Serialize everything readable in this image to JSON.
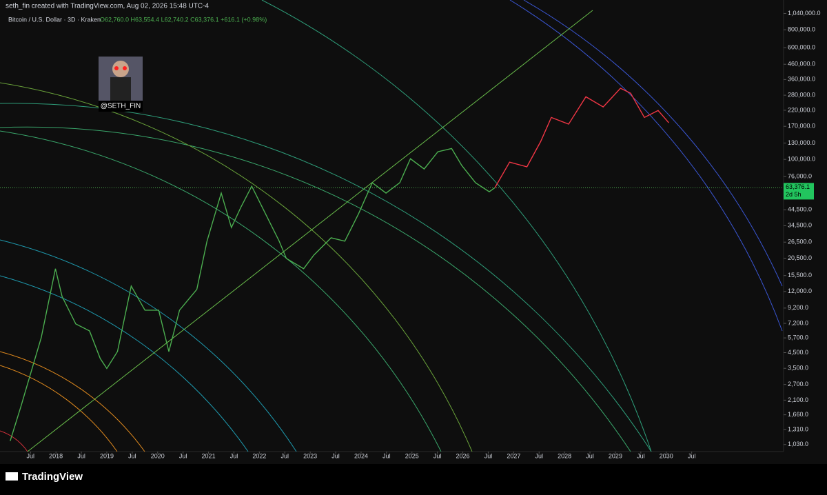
{
  "header": {
    "credit": "seth_fin created with TradingView.com, Aug 02, 2026 15:48 UTC-4",
    "symbol": "Bitcoin / U.S. Dollar · 3D · Kraken",
    "ohlc": "O62,760.0 H63,554.4 L62,740.2 C63,376.1 +616.1 (+0.98%)"
  },
  "avatar": {
    "label": "@SETH_FIN"
  },
  "footer": {
    "brand": "TradingView"
  },
  "chart_data": {
    "type": "line",
    "log_scale": true,
    "xlim": [
      2016.9,
      2032.28
    ],
    "ylim": [
      920,
      1290000
    ],
    "xticks": [
      {
        "value": 2017.5,
        "label": "Jul"
      },
      2018,
      {
        "value": 2018.5,
        "label": "Jul"
      },
      2019,
      {
        "value": 2019.5,
        "label": "Jul"
      },
      2020,
      {
        "value": 2020.5,
        "label": "Jul"
      },
      2021,
      {
        "value": 2021.5,
        "label": "Jul"
      },
      2022,
      {
        "value": 2022.5,
        "label": "Jul"
      },
      2023,
      {
        "value": 2023.5,
        "label": "Jul"
      },
      2024,
      {
        "value": 2024.5,
        "label": "Jul"
      },
      2025,
      {
        "value": 2025.5,
        "label": "Jul"
      },
      2026,
      {
        "value": 2026.5,
        "label": "Jul"
      },
      2027,
      {
        "value": 2027.5,
        "label": "Jul"
      },
      2028,
      {
        "value": 2028.5,
        "label": "Jul"
      },
      2029,
      {
        "value": 2029.5,
        "label": "Jul"
      },
      2030,
      {
        "value": 2030.5,
        "label": "Jul"
      }
    ],
    "yticks": [
      {
        "value": 1030,
        "label": "1,030.0"
      },
      {
        "value": 1310,
        "label": "1,310.0"
      },
      {
        "value": 1660,
        "label": "1,660.0"
      },
      {
        "value": 2100,
        "label": "2,100.0"
      },
      {
        "value": 2700,
        "label": "2,700.0"
      },
      {
        "value": 3500,
        "label": "3,500.0"
      },
      {
        "value": 4500,
        "label": "4,500.0"
      },
      {
        "value": 5700,
        "label": "5,700.0"
      },
      {
        "value": 7200,
        "label": "7,200.0"
      },
      {
        "value": 9200,
        "label": "9,200.0"
      },
      {
        "value": 12000,
        "label": "12,000.0"
      },
      {
        "value": 15500,
        "label": "15,500.0"
      },
      {
        "value": 20500,
        "label": "20,500.0"
      },
      {
        "value": 26500,
        "label": "26,500.0"
      },
      {
        "value": 34500,
        "label": "34,500.0"
      },
      {
        "value": 44500,
        "label": "44,500.0"
      },
      {
        "value": 76000,
        "label": "76,000.0"
      },
      {
        "value": 100000,
        "label": "100,000.0"
      },
      {
        "value": 130000,
        "label": "130,000.0"
      },
      {
        "value": 170000,
        "label": "170,000.0"
      },
      {
        "value": 220000,
        "label": "220,000.0"
      },
      {
        "value": 280000,
        "label": "280,000.0"
      },
      {
        "value": 360000,
        "label": "360,000.0"
      },
      {
        "value": 460000,
        "label": "460,000.0"
      },
      {
        "value": 600000,
        "label": "600,000.0"
      },
      {
        "value": 800000,
        "label": "800,000.0"
      },
      {
        "value": 1040000,
        "label": "1,040,000.0"
      }
    ],
    "last_price": {
      "value": 63376.1,
      "label": "63,376.1"
    },
    "countdown": "2d 5h",
    "series": [
      {
        "color": "#4caf50",
        "x": [
          2017.1,
          2017.31,
          2017.51,
          2017.71,
          2017.99,
          2018.12,
          2018.39,
          2018.66,
          2018.87,
          2019.0,
          2019.21,
          2019.48,
          2019.75,
          2020.02,
          2020.22,
          2020.43,
          2020.77,
          2020.97,
          2021.25,
          2021.45,
          2021.64,
          2021.85,
          2022.12,
          2022.39,
          2022.53,
          2022.87,
          2023.07,
          2023.41,
          2023.68,
          2023.95,
          2024.22,
          2024.49,
          2024.76,
          2024.97,
          2025.24,
          2025.51,
          2025.78,
          2025.98,
          2026.25,
          2026.52,
          2026.63
        ],
        "values": [
          1090,
          1890,
          3290,
          5710,
          17300,
          11100,
          7130,
          6380,
          4100,
          3490,
          4580,
          13100,
          8890,
          8890,
          4580,
          8890,
          12400,
          26900,
          58200,
          33500,
          46700,
          65000,
          41800,
          26900,
          20400,
          17300,
          21500,
          28400,
          26900,
          41800,
          68700,
          58200,
          68700,
          101000,
          85700,
          113000,
          119000,
          90600,
          68700,
          59500,
          63400
        ]
      },
      {
        "color": "#f23645",
        "x": [
          2026.63,
          2026.92,
          2027.26,
          2027.53,
          2027.74,
          2028.08,
          2028.42,
          2028.76,
          2029.1,
          2029.3,
          2029.57,
          2029.84,
          2030.05
        ],
        "values": [
          63400,
          95700,
          88700,
          133000,
          196000,
          176000,
          273000,
          232000,
          313000,
          289000,
          196000,
          219000,
          180000
        ]
      }
    ]
  }
}
